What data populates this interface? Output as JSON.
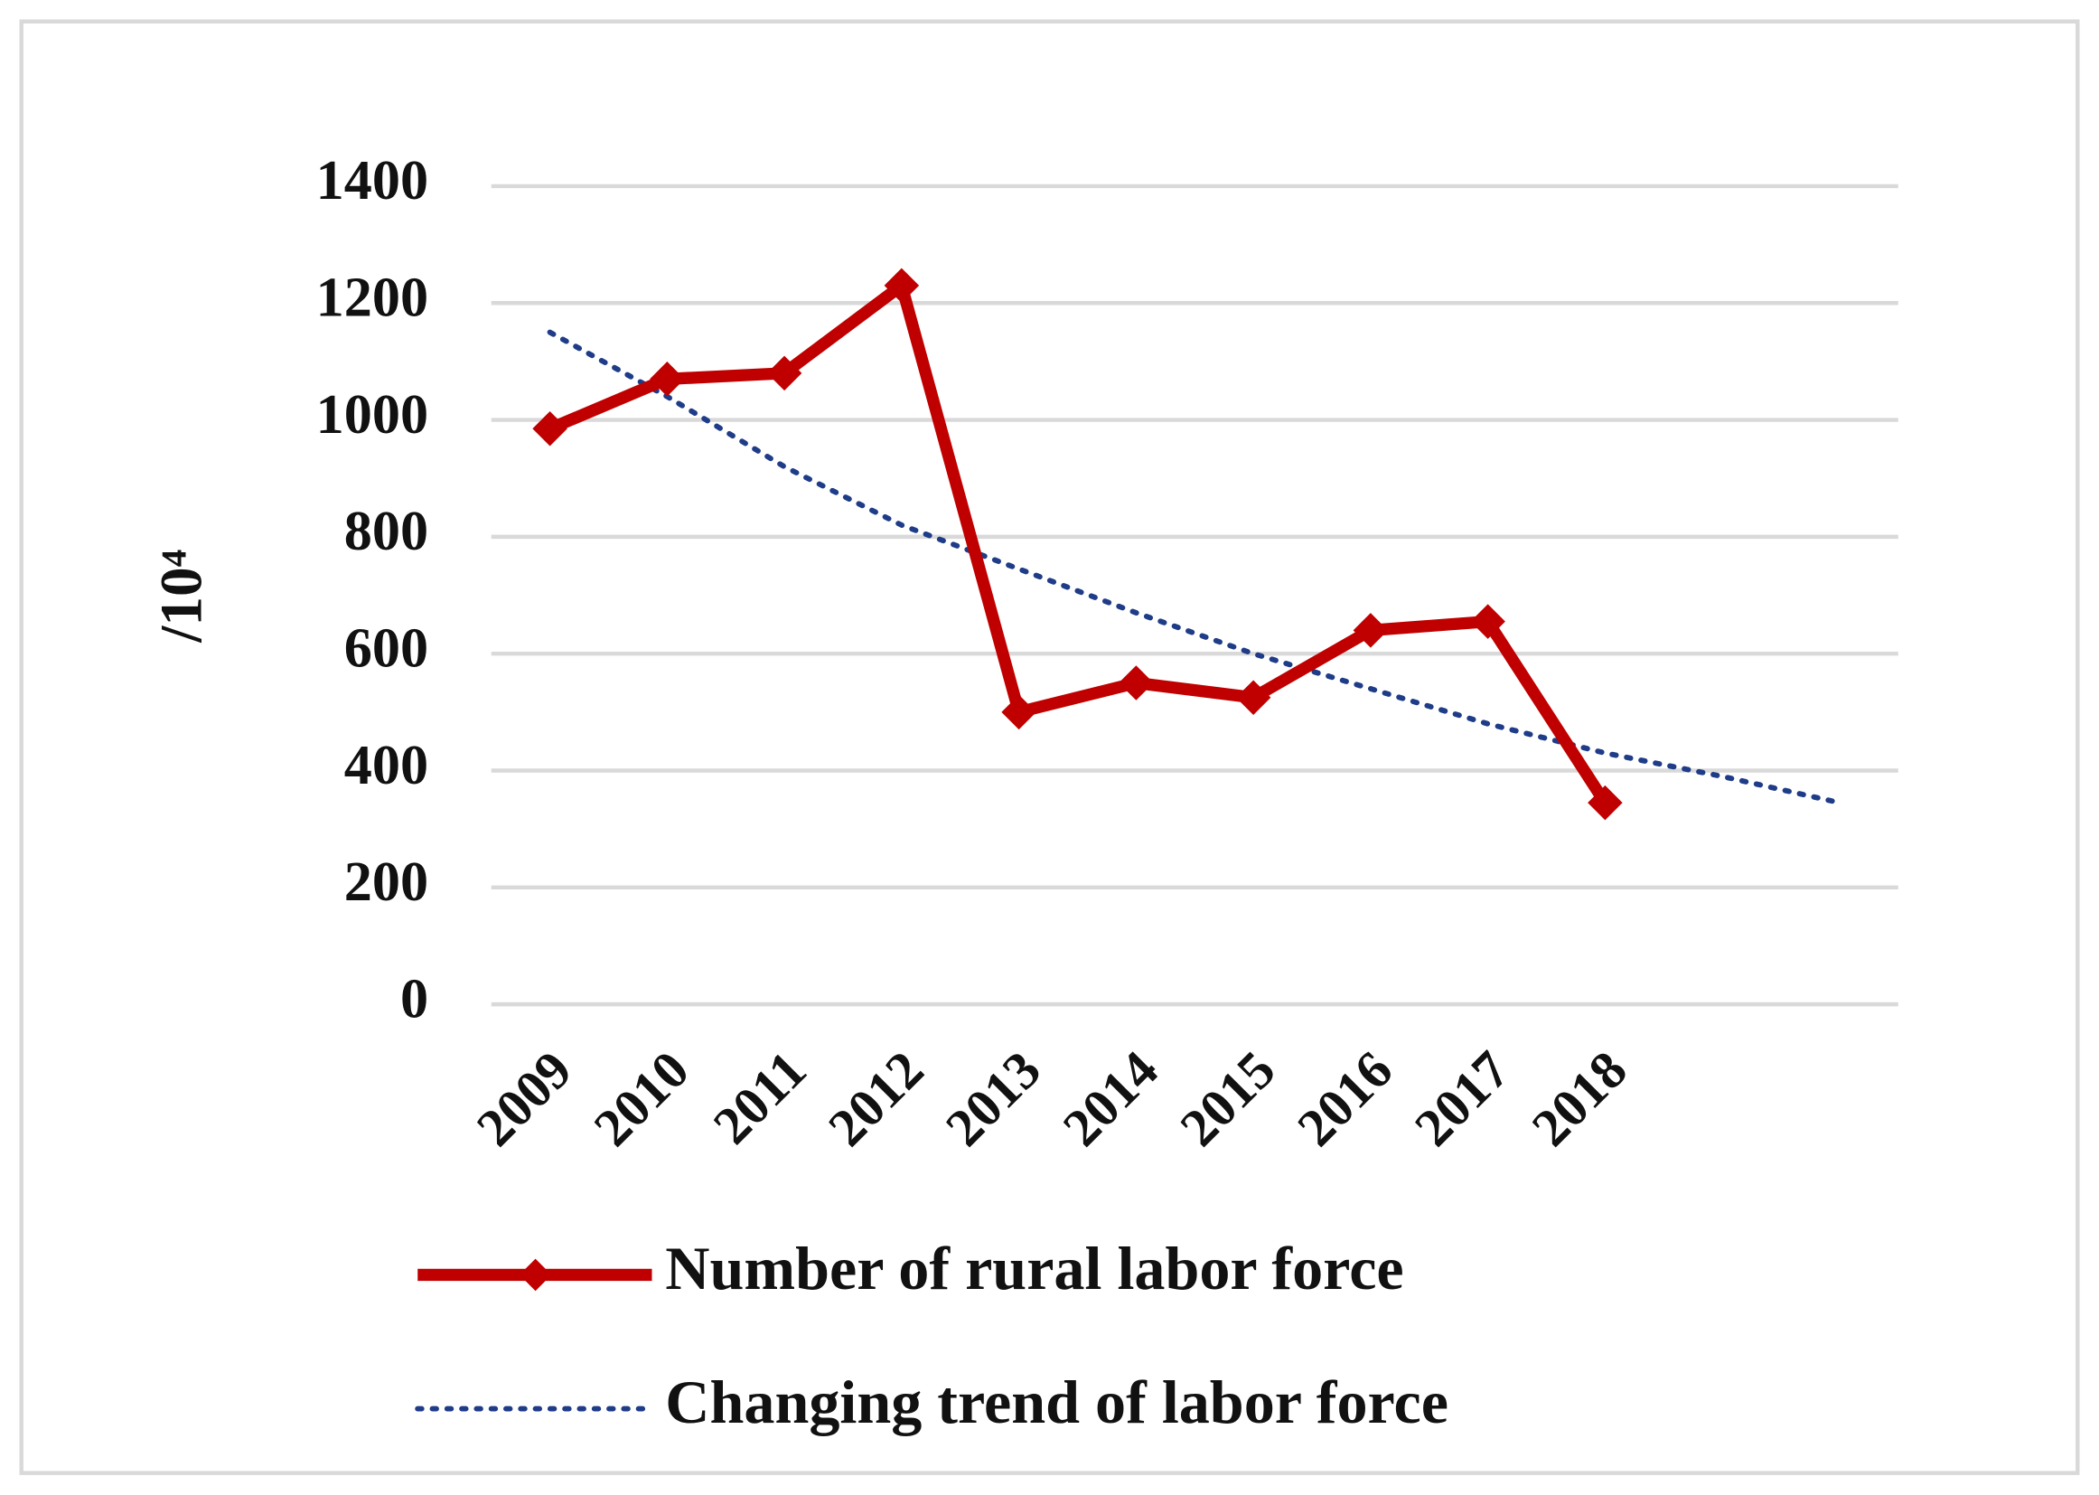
{
  "chart_data": {
    "type": "line",
    "ylabel": "/10⁴",
    "categories": [
      "2009",
      "2010",
      "2011",
      "2012",
      "2013",
      "2014",
      "2015",
      "2016",
      "2017",
      "2018",
      null,
      null
    ],
    "series": [
      {
        "name": "Number of rural labor force",
        "color": "#c00000",
        "line_style": "solid",
        "marker": "diamond",
        "values": [
          985,
          1070,
          1080,
          1230,
          500,
          550,
          525,
          640,
          655,
          345,
          null,
          null
        ]
      },
      {
        "name": "Changing trend of labor force",
        "color": "#1f3c88",
        "line_style": "dotted",
        "marker": "none",
        "values": [
          1150,
          1040,
          920,
          820,
          745,
          670,
          600,
          540,
          480,
          430,
          390,
          345
        ]
      }
    ],
    "ylim": [
      0,
      1400
    ],
    "yticks": [
      0,
      200,
      400,
      600,
      800,
      1000,
      1200,
      1400
    ],
    "grid": true,
    "legend": "bottom"
  }
}
